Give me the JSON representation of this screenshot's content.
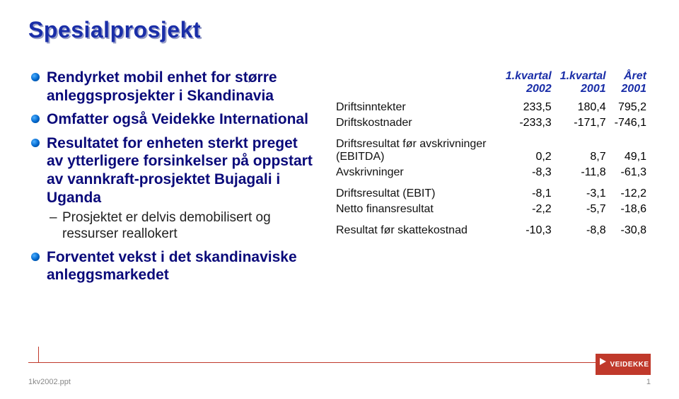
{
  "title": "Spesialprosjekt",
  "title_color": "#1a2ea8",
  "title_shadow_color": "#9aa0c8",
  "bullets": [
    {
      "text": "Rendyrket mobil enhet for større anleggsprosjekter i Skandinavia"
    },
    {
      "text": "Omfatter også Veidekke International"
    },
    {
      "text": "Resultatet for enheten sterkt preget av ytterligere forsinkelser på oppstart av vannkraft-prosjektet Bujagali i Uganda",
      "sub": [
        "Prosjektet er delvis demobilisert og ressurser reallokert"
      ]
    },
    {
      "text": "Forventet vekst i det skandinaviske anleggsmarkedet"
    }
  ],
  "bullet_text_color": "#0a0a7a",
  "sub_text_color": "#222222",
  "table": {
    "header_color": "#1a2ea8",
    "columns": [
      "",
      "1.kvartal 2002",
      "1.kvartal 2001",
      "Året 2001"
    ],
    "groups": [
      {
        "rows": [
          {
            "label": "Driftsinntekter",
            "values": [
              "233,5",
              "180,4",
              "795,2"
            ]
          },
          {
            "label": "Driftskostnader",
            "values": [
              "-233,3",
              "-171,7",
              "-746,1"
            ]
          }
        ]
      },
      {
        "rows": [
          {
            "label": "Driftsresultat før avskrivninger (EBITDA)",
            "values": [
              "0,2",
              "8,7",
              "49,1"
            ]
          },
          {
            "label": "Avskrivninger",
            "values": [
              "-8,3",
              "-11,8",
              "-61,3"
            ]
          }
        ]
      },
      {
        "rows": [
          {
            "label": "Driftsresultat (EBIT)",
            "values": [
              "-8,1",
              "-3,1",
              "-12,2"
            ]
          },
          {
            "label": "Netto finansresultat",
            "values": [
              "-2,2",
              "-5,7",
              "-18,6"
            ]
          }
        ]
      },
      {
        "rows": [
          {
            "label": "Resultat før skattekostnad",
            "values": [
              "-10,3",
              "-8,8",
              "-30,8"
            ]
          }
        ]
      }
    ]
  },
  "footer": {
    "filename": "1kv2002.ppt",
    "logo_text": "VEIDEKKE",
    "page_number": "1",
    "rule_color": "#c0392b",
    "logo_bg": "#c0392b"
  }
}
